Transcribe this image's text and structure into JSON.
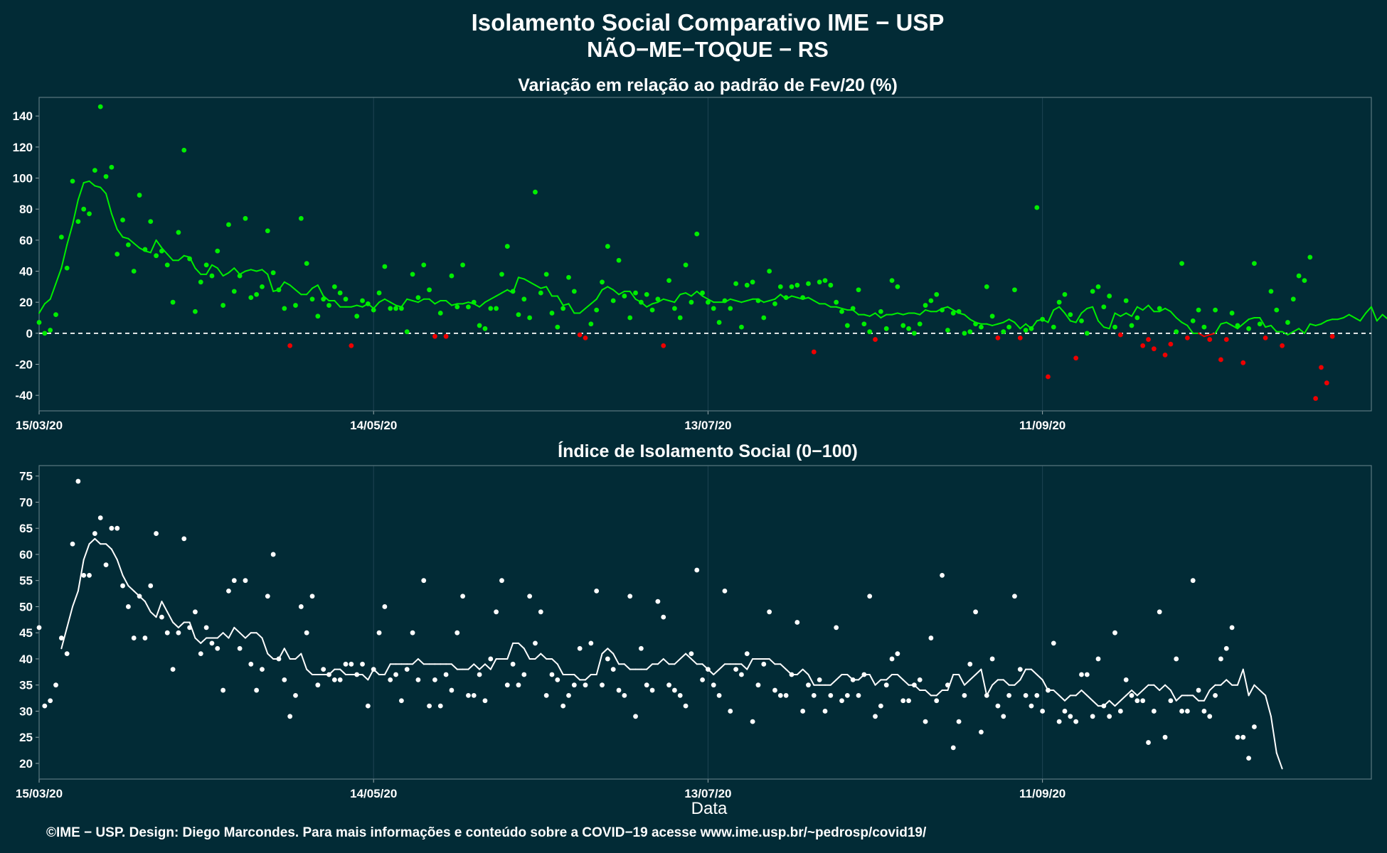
{
  "title": "Isolamento Social Comparativo IME − USP",
  "subtitle": "NÃO−ME−TOQUE − RS",
  "xlabel": "Data",
  "footer": "©IME − USP. Design: Diego Marcondes. Para mais informações e conteúdo sobre a COVID−19 acesse www.ime.usp.br/~pedrosp/covid19/",
  "colors": {
    "background": "#022b36",
    "positive": "#00ee00",
    "negative": "#ee0000",
    "index": "#ffffff",
    "grid": "#1e4452"
  },
  "chart_data": [
    {
      "type": "scatter",
      "title": "Variação em relação ao padrão de Fev/20 (%)",
      "x_start": "15/03/20",
      "x_ticks": [
        "15/03/20",
        "14/05/20",
        "13/07/20",
        "11/09/20"
      ],
      "xlim": [
        "15/03/20",
        "09/11/20"
      ],
      "ylim": [
        -50,
        152
      ],
      "y_ticks": [
        -40,
        -20,
        0,
        20,
        40,
        60,
        80,
        100,
        120,
        140
      ],
      "reference_line": 0,
      "point_color_rule": "green when value >= 0, red when value < 0",
      "series": [
        {
          "values": [
            7,
            0,
            2,
            12,
            62,
            42,
            98,
            72,
            80,
            77,
            105,
            146,
            101,
            107,
            51,
            73,
            57,
            40,
            89,
            54,
            72,
            50,
            53,
            44,
            20,
            65,
            118,
            48,
            14,
            33,
            44,
            37,
            53,
            18,
            70,
            27,
            37,
            74,
            23,
            25,
            30,
            66,
            39,
            28,
            16,
            -8,
            18,
            74,
            45,
            22,
            11,
            22,
            18,
            30,
            26,
            22,
            -8,
            11,
            21,
            19,
            15,
            26,
            43,
            16,
            16,
            16,
            1,
            38,
            23,
            44,
            28,
            -2,
            13,
            -2,
            37,
            17,
            44,
            17,
            20,
            5,
            3,
            16,
            16,
            38,
            56,
            27,
            12,
            22,
            10,
            91,
            26,
            38,
            13,
            4,
            16,
            36,
            27,
            -1,
            -3,
            6,
            15,
            33,
            56,
            21,
            47,
            24,
            10,
            26,
            20,
            25,
            15,
            22,
            -8,
            34,
            16,
            10,
            44,
            20,
            64,
            26,
            20,
            16,
            7,
            21,
            16,
            32,
            4,
            31,
            33,
            21,
            10,
            40,
            19,
            30,
            23,
            30,
            31,
            23,
            32,
            -12,
            33,
            34,
            31,
            20,
            14,
            5,
            16,
            28,
            6,
            1,
            -4,
            14,
            3,
            34,
            30,
            5,
            3,
            0,
            6,
            18,
            21,
            25,
            15,
            2,
            13,
            14,
            0,
            1,
            6,
            4,
            30,
            11,
            -3,
            1,
            4,
            28,
            -3,
            2,
            3,
            81,
            9,
            -28,
            4,
            20,
            25,
            12,
            -16,
            8,
            0,
            27,
            30,
            17,
            24,
            4,
            -1,
            21,
            5,
            10,
            -8,
            -4,
            -10,
            16,
            -14,
            -7,
            1,
            45,
            -3,
            8,
            15,
            4,
            -4,
            15,
            -17,
            -4,
            13,
            5,
            -19,
            3,
            45,
            6,
            -3,
            27,
            15,
            -8,
            7,
            22,
            37,
            34,
            49,
            -42,
            -22,
            -32,
            -2
          ]
        },
        {
          "name": "média móvel",
          "start_offset": 0,
          "values": [
            13,
            19,
            22,
            32,
            42,
            57,
            70,
            86,
            97,
            98,
            95,
            94,
            90,
            77,
            67,
            62,
            61,
            58,
            55,
            53,
            52,
            60,
            55,
            51,
            47,
            47,
            50,
            49,
            42,
            38,
            38,
            44,
            42,
            37,
            39,
            42,
            38,
            40,
            41,
            40,
            41,
            38,
            27,
            28,
            33,
            31,
            28,
            25,
            25,
            29,
            31,
            24,
            21,
            21,
            17,
            17,
            17,
            18,
            17,
            19,
            16,
            20,
            22,
            20,
            18,
            17,
            22,
            21,
            20,
            22,
            22,
            19,
            21,
            21,
            18,
            19,
            19,
            20,
            19,
            17,
            20,
            22,
            24,
            26,
            28,
            26,
            36,
            35,
            33,
            31,
            29,
            30,
            24,
            24,
            18,
            19,
            13,
            13,
            16,
            19,
            22,
            28,
            30,
            28,
            25,
            27,
            27,
            22,
            20,
            17,
            19,
            20,
            22,
            21,
            20,
            25,
            26,
            24,
            27,
            24,
            22,
            20,
            20,
            20,
            22,
            21,
            20,
            21,
            22,
            22,
            20,
            21,
            22,
            25,
            22,
            24,
            23,
            22,
            23,
            21,
            19,
            19,
            17,
            17,
            16,
            15,
            15,
            12,
            12,
            11,
            13,
            10,
            12,
            12,
            13,
            12,
            13,
            13,
            12,
            15,
            14,
            14,
            16,
            17,
            15,
            13,
            12,
            9,
            7,
            6,
            6,
            5,
            6,
            7,
            9,
            7,
            3,
            6,
            3,
            8,
            9,
            7,
            15,
            17,
            13,
            8,
            7,
            13,
            16,
            17,
            8,
            4,
            3,
            13,
            11,
            13,
            11,
            17,
            15,
            18,
            14,
            14,
            16,
            14,
            10,
            7,
            5,
            0,
            0,
            -2,
            -1,
            0,
            6,
            7,
            5,
            3,
            6,
            9,
            10,
            10,
            4,
            5,
            1,
            1,
            -1,
            1,
            3,
            0,
            6,
            5,
            6,
            8,
            9,
            9,
            10,
            12,
            10,
            8,
            13,
            17,
            8,
            12,
            9,
            6,
            3
          ]
        }
      ]
    },
    {
      "type": "scatter",
      "title": "Índice de Isolamento Social (0−100)",
      "x_start": "15/03/20",
      "x_ticks": [
        "15/03/20",
        "14/05/20",
        "13/07/20",
        "11/09/20"
      ],
      "xlim": [
        "15/03/20",
        "09/11/20"
      ],
      "ylim": [
        17,
        77
      ],
      "y_ticks": [
        20,
        25,
        30,
        35,
        40,
        45,
        50,
        55,
        60,
        65,
        70,
        75
      ],
      "series": [
        {
          "values": [
            46,
            31,
            32,
            35,
            44,
            41,
            62,
            74,
            56,
            56,
            64,
            67,
            58,
            65,
            65,
            54,
            50,
            44,
            52,
            44,
            54,
            64,
            48,
            45,
            38,
            45,
            63,
            46,
            49,
            41,
            46,
            43,
            42,
            34,
            53,
            55,
            42,
            55,
            39,
            34,
            38,
            52,
            60,
            40,
            36,
            29,
            33,
            50,
            45,
            52,
            35,
            38,
            37,
            36,
            36,
            39,
            39,
            37,
            39,
            31,
            38,
            45,
            50,
            36,
            37,
            32,
            38,
            45,
            36,
            55,
            31,
            36,
            31,
            37,
            34,
            45,
            52,
            33,
            33,
            37,
            32,
            40,
            49,
            55,
            35,
            39,
            35,
            37,
            52,
            43,
            49,
            33,
            37,
            36,
            31,
            33,
            35,
            42,
            35,
            43,
            53,
            35,
            40,
            38,
            34,
            33,
            52,
            29,
            42,
            35,
            34,
            51,
            48,
            35,
            34,
            33,
            31,
            41,
            57,
            36,
            38,
            35,
            33,
            53,
            30,
            38,
            37,
            41,
            28,
            35,
            39,
            49,
            34,
            33,
            33,
            37,
            47,
            30,
            35,
            33,
            36,
            30,
            33,
            46,
            32,
            33,
            36,
            33,
            37,
            52,
            29,
            31,
            35,
            40,
            41,
            32,
            32,
            35,
            36,
            28,
            44,
            32,
            56,
            35,
            23,
            28,
            33,
            39,
            49,
            26,
            33,
            40,
            31,
            29,
            33,
            52,
            38,
            33,
            31,
            33,
            30,
            34,
            43,
            28,
            30,
            29,
            28,
            37,
            37,
            29,
            40,
            31,
            29,
            45,
            30,
            36,
            33,
            32,
            32,
            24,
            30,
            49,
            25,
            32,
            40,
            30,
            30,
            55,
            34,
            30,
            29,
            33,
            40,
            42,
            46,
            25,
            25,
            21,
            27
          ]
        },
        {
          "name": "média móvel",
          "start_offset": 4,
          "values": [
            42,
            46,
            50,
            53,
            59,
            62,
            63,
            62,
            62,
            61,
            59,
            56,
            54,
            53,
            52,
            51,
            49,
            48,
            51,
            49,
            47,
            46,
            47,
            47,
            44,
            43,
            44,
            44,
            44,
            45,
            44,
            46,
            45,
            44,
            45,
            45,
            44,
            41,
            40,
            40,
            42,
            40,
            40,
            41,
            38,
            37,
            37,
            37,
            37,
            38,
            38,
            37,
            37,
            37,
            37,
            36,
            38,
            37,
            37,
            39,
            39,
            39,
            39,
            39,
            40,
            39,
            39,
            39,
            39,
            39,
            39,
            38,
            38,
            38,
            39,
            38,
            39,
            38,
            40,
            40,
            40,
            43,
            43,
            42,
            40,
            40,
            41,
            40,
            40,
            39,
            37,
            37,
            37,
            36,
            36,
            37,
            37,
            41,
            42,
            41,
            39,
            39,
            38,
            38,
            38,
            38,
            39,
            39,
            40,
            39,
            39,
            40,
            41,
            40,
            39,
            39,
            38,
            37,
            38,
            39,
            39,
            39,
            39,
            38,
            40,
            40,
            40,
            40,
            39,
            39,
            38,
            37,
            37,
            38,
            37,
            35,
            35,
            35,
            35,
            36,
            37,
            37,
            36,
            36,
            37,
            37,
            35,
            36,
            36,
            37,
            37,
            36,
            35,
            35,
            34,
            34,
            33,
            33,
            34,
            34,
            37,
            37,
            35,
            36,
            37,
            38,
            33,
            35,
            36,
            36,
            35,
            35,
            36,
            38,
            38,
            37,
            36,
            34,
            34,
            33,
            32,
            33,
            33,
            34,
            33,
            32,
            31,
            31,
            32,
            31,
            32,
            33,
            34,
            33,
            34,
            35,
            35,
            34,
            35,
            34,
            32,
            33,
            33,
            33,
            32,
            32,
            34,
            35,
            35,
            36,
            35,
            35,
            38,
            33,
            35,
            34,
            33,
            29,
            22,
            19
          ]
        }
      ]
    }
  ]
}
